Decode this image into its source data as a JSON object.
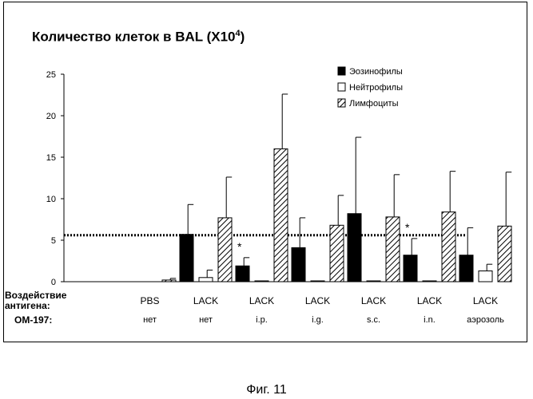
{
  "title_text": "Количество клеток в BAL (X10",
  "title_exp": "4",
  "title_close": ")",
  "row_labels": {
    "exposure_line1": "Воздействие",
    "exposure_line2": "антигена:",
    "om": "ОМ-197:"
  },
  "caption": "Фиг. 11",
  "colors": {
    "ink": "#000000",
    "background": "#ffffff"
  },
  "chart_data": {
    "type": "bar",
    "title": "Количество клеток в BAL (X10^4)",
    "categories": [
      "PBS",
      "LACK",
      "LACK",
      "LACK",
      "LACK",
      "LACK",
      "LACK"
    ],
    "category_sublabels": [
      "нет",
      "нет",
      "i.p.",
      "i.g.",
      "s.c.",
      "i.n.",
      "аэрозоль"
    ],
    "ylim": [
      0,
      25
    ],
    "yticks": [
      0,
      5,
      10,
      15,
      20,
      25
    ],
    "series": [
      {
        "name": "Эозинофилы",
        "pattern": "solid",
        "values": [
          0,
          5.7,
          1.9,
          4.1,
          8.2,
          3.2,
          3.2
        ],
        "errors": [
          0,
          3.6,
          1.0,
          3.6,
          9.2,
          2.0,
          3.3
        ]
      },
      {
        "name": "Нейтрофилы",
        "pattern": "open",
        "values": [
          0,
          0.5,
          0.1,
          0.1,
          0.1,
          0.1,
          1.3
        ],
        "errors": [
          0,
          0.9,
          0,
          0,
          0,
          0,
          0.8
        ]
      },
      {
        "name": "Лимфоциты",
        "pattern": "hatched",
        "values": [
          0.2,
          7.7,
          16.0,
          6.8,
          7.8,
          8.4,
          6.7
        ],
        "errors": [
          0.2,
          4.9,
          6.6,
          3.6,
          5.1,
          4.9,
          6.5
        ]
      }
    ],
    "reference_line": 5.6,
    "significance_marks": [
      {
        "category_index": 2,
        "text": "*"
      },
      {
        "category_index": 5,
        "text": "*"
      }
    ],
    "legend_position": "top-right",
    "grid": false
  }
}
